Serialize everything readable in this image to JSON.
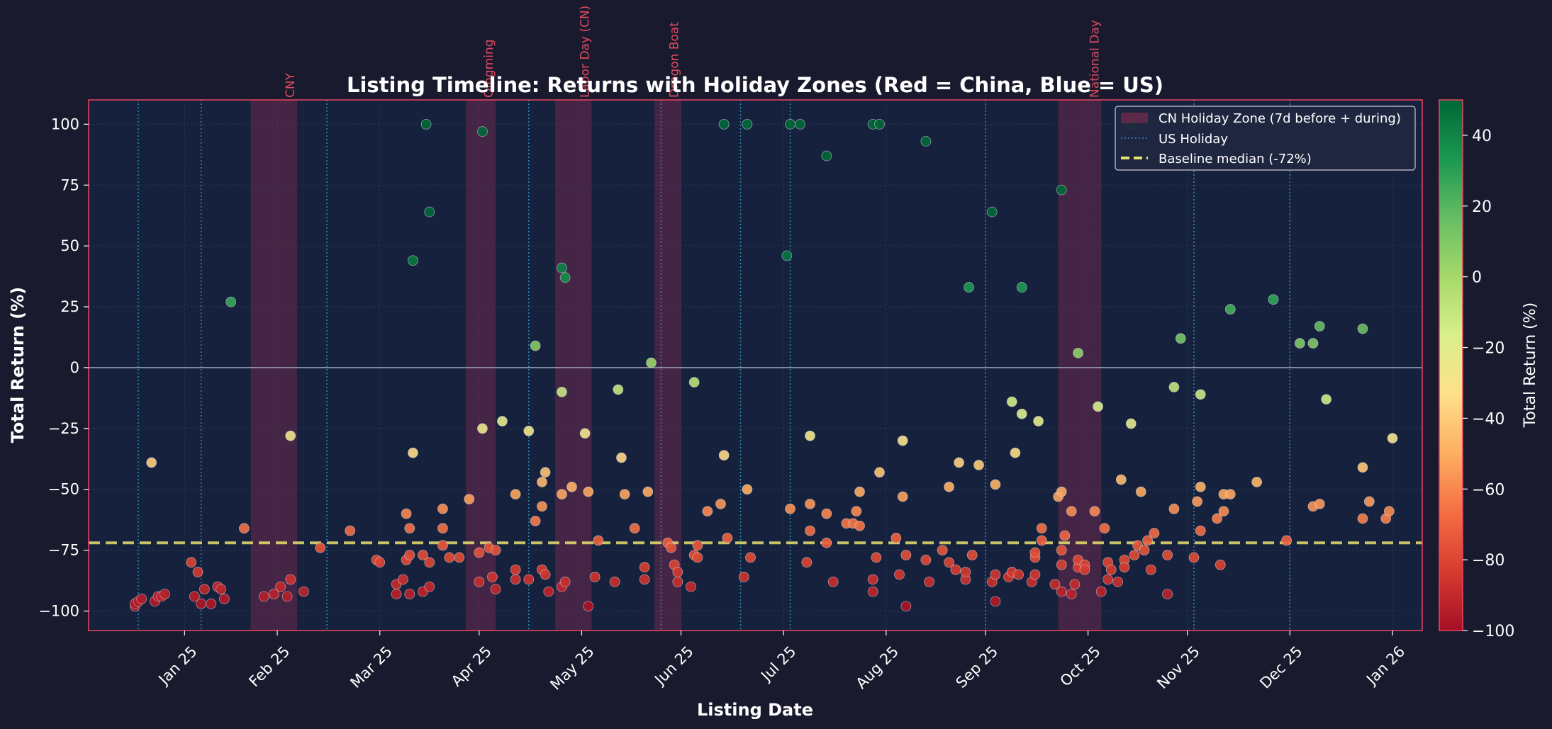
{
  "chart_data": {
    "type": "scatter",
    "title": "Listing Timeline: Returns with Holiday Zones (Red = China, Blue = US)",
    "xlabel": "Listing Date",
    "ylabel": "Total Return (%)",
    "xlim": [
      "2025-01-03",
      "2026-02-10"
    ],
    "ylim": [
      -108,
      110
    ],
    "x_ticks": [
      {
        "date": "2025-02-01",
        "label": "Jan 25"
      },
      {
        "date": "2025-03-01",
        "label": "Feb 25"
      },
      {
        "date": "2025-04-01",
        "label": "Mar 25"
      },
      {
        "date": "2025-05-01",
        "label": "Apr 25"
      },
      {
        "date": "2025-06-01",
        "label": "May 25"
      },
      {
        "date": "2025-07-01",
        "label": "Jun 25"
      },
      {
        "date": "2025-08-01",
        "label": "Jul 25"
      },
      {
        "date": "2025-09-01",
        "label": "Aug 25"
      },
      {
        "date": "2025-10-01",
        "label": "Sep 25"
      },
      {
        "date": "2025-11-01",
        "label": "Oct 25"
      },
      {
        "date": "2025-12-01",
        "label": "Nov 25"
      },
      {
        "date": "2026-01-01",
        "label": "Dec 25"
      },
      {
        "date": "2026-02-01",
        "label": "Jan 26"
      }
    ],
    "y_ticks": [
      100,
      75,
      50,
      25,
      0,
      -25,
      -50,
      -75,
      -100
    ],
    "grid": true,
    "zero_line": 0,
    "baseline_median": -72,
    "cn_holiday_zones": [
      {
        "label": "CNY",
        "start": "2025-02-21",
        "end": "2025-03-07"
      },
      {
        "label": "Qingming",
        "start": "2025-04-27",
        "end": "2025-05-06"
      },
      {
        "label": "Labor Day (CN)",
        "start": "2025-05-24",
        "end": "2025-06-04"
      },
      {
        "label": "Dragon Boat",
        "start": "2025-06-23",
        "end": "2025-07-01"
      },
      {
        "label": "National Day",
        "start": "2025-10-23",
        "end": "2025-11-05"
      }
    ],
    "us_holidays": [
      "2025-01-18",
      "2025-02-06",
      "2025-03-16",
      "2025-05-16",
      "2025-06-25",
      "2025-07-19",
      "2025-08-03",
      "2025-10-01",
      "2025-12-03",
      "2026-01-01"
    ],
    "legend": {
      "position": "top-right",
      "entries": [
        "CN Holiday Zone (7d before + during)",
        "US Holiday",
        "Baseline median (-72%)"
      ]
    },
    "colorbar": {
      "label": "Total Return (%)",
      "min": -100,
      "max": 50,
      "ticks": [
        40,
        20,
        0,
        -20,
        -40,
        -60,
        -80,
        -100
      ],
      "colors": [
        "#a50f26",
        "#d73b2f",
        "#f46d43",
        "#fdae61",
        "#fee08b",
        "#d9ef8b",
        "#a6d96a",
        "#66bd63",
        "#1a9850",
        "#006837"
      ]
    },
    "colors": {
      "background": "#1a1a2e",
      "plot_background": "#16213e",
      "frame": "#e94560",
      "cn_zone": "#6b2a4a",
      "us_line": "#2a8fb8",
      "baseline": "#e8e070"
    },
    "points": [
      [
        "2025-01-17",
        -98
      ],
      [
        "2025-01-17",
        -97
      ],
      [
        "2025-01-18",
        -96
      ],
      [
        "2025-01-19",
        -95
      ],
      [
        "2025-01-22",
        -39
      ],
      [
        "2025-01-23",
        -96
      ],
      [
        "2025-01-24",
        -94
      ],
      [
        "2025-01-25",
        -94
      ],
      [
        "2025-01-26",
        -93
      ],
      [
        "2025-02-03",
        -80
      ],
      [
        "2025-02-04",
        -94
      ],
      [
        "2025-02-05",
        -84
      ],
      [
        "2025-02-06",
        -97
      ],
      [
        "2025-02-07",
        -91
      ],
      [
        "2025-02-09",
        -97
      ],
      [
        "2025-02-11",
        -90
      ],
      [
        "2025-02-12",
        -91
      ],
      [
        "2025-02-13",
        -95
      ],
      [
        "2025-02-15",
        27
      ],
      [
        "2025-02-19",
        -66
      ],
      [
        "2025-02-25",
        -94
      ],
      [
        "2025-02-28",
        -93
      ],
      [
        "2025-03-02",
        -90
      ],
      [
        "2025-03-04",
        -94
      ],
      [
        "2025-03-05",
        -87
      ],
      [
        "2025-03-05",
        -28
      ],
      [
        "2025-03-09",
        -92
      ],
      [
        "2025-03-14",
        -74
      ],
      [
        "2025-03-23",
        -67
      ],
      [
        "2025-03-31",
        -79
      ],
      [
        "2025-04-01",
        -80
      ],
      [
        "2025-04-06",
        -89
      ],
      [
        "2025-04-06",
        -93
      ],
      [
        "2025-04-08",
        -87
      ],
      [
        "2025-04-09",
        -60
      ],
      [
        "2025-04-09",
        -79
      ],
      [
        "2025-04-10",
        -93
      ],
      [
        "2025-04-10",
        -77
      ],
      [
        "2025-04-10",
        -66
      ],
      [
        "2025-04-11",
        44
      ],
      [
        "2025-04-11",
        -35
      ],
      [
        "2025-04-14",
        -92
      ],
      [
        "2025-04-14",
        -77
      ],
      [
        "2025-04-15",
        100
      ],
      [
        "2025-04-16",
        -80
      ],
      [
        "2025-04-16",
        -90
      ],
      [
        "2025-04-16",
        64
      ],
      [
        "2025-04-20",
        -58
      ],
      [
        "2025-04-20",
        -66
      ],
      [
        "2025-04-20",
        -73
      ],
      [
        "2025-04-22",
        -78
      ],
      [
        "2025-04-25",
        -78
      ],
      [
        "2025-04-28",
        -54
      ],
      [
        "2025-05-01",
        -76
      ],
      [
        "2025-05-01",
        -88
      ],
      [
        "2025-05-02",
        97
      ],
      [
        "2025-05-02",
        -25
      ],
      [
        "2025-05-04",
        -74
      ],
      [
        "2025-05-05",
        -86
      ],
      [
        "2025-05-06",
        -75
      ],
      [
        "2025-05-06",
        -91
      ],
      [
        "2025-05-08",
        -22
      ],
      [
        "2025-05-12",
        -52
      ],
      [
        "2025-05-12",
        -87
      ],
      [
        "2025-05-12",
        -83
      ],
      [
        "2025-05-16",
        -87
      ],
      [
        "2025-05-16",
        -26
      ],
      [
        "2025-05-18",
        9
      ],
      [
        "2025-05-18",
        -63
      ],
      [
        "2025-05-20",
        -83
      ],
      [
        "2025-05-20",
        -47
      ],
      [
        "2025-05-20",
        -57
      ],
      [
        "2025-05-21",
        -85
      ],
      [
        "2025-05-21",
        -43
      ],
      [
        "2025-05-22",
        -92
      ],
      [
        "2025-05-26",
        41
      ],
      [
        "2025-05-26",
        -10
      ],
      [
        "2025-05-26",
        -90
      ],
      [
        "2025-05-26",
        -52
      ],
      [
        "2025-05-27",
        37
      ],
      [
        "2025-05-27",
        -88
      ],
      [
        "2025-05-29",
        -49
      ],
      [
        "2025-06-02",
        -27
      ],
      [
        "2025-06-03",
        -51
      ],
      [
        "2025-06-03",
        -98
      ],
      [
        "2025-06-05",
        -86
      ],
      [
        "2025-06-06",
        -71
      ],
      [
        "2025-06-11",
        -88
      ],
      [
        "2025-06-12",
        -9
      ],
      [
        "2025-06-13",
        -37
      ],
      [
        "2025-06-14",
        -52
      ],
      [
        "2025-06-17",
        -66
      ],
      [
        "2025-06-20",
        -82
      ],
      [
        "2025-06-20",
        -87
      ],
      [
        "2025-06-21",
        -51
      ],
      [
        "2025-06-22",
        2
      ],
      [
        "2025-06-27",
        -72
      ],
      [
        "2025-06-28",
        -74
      ],
      [
        "2025-06-29",
        -81
      ],
      [
        "2025-06-30",
        -84
      ],
      [
        "2025-06-30",
        -88
      ],
      [
        "2025-07-04",
        -90
      ],
      [
        "2025-07-05",
        -77
      ],
      [
        "2025-07-05",
        -6
      ],
      [
        "2025-07-06",
        -73
      ],
      [
        "2025-07-06",
        -78
      ],
      [
        "2025-07-09",
        -59
      ],
      [
        "2025-07-13",
        -56
      ],
      [
        "2025-07-14",
        100
      ],
      [
        "2025-07-14",
        -36
      ],
      [
        "2025-07-15",
        -70
      ],
      [
        "2025-07-20",
        -86
      ],
      [
        "2025-07-21",
        100
      ],
      [
        "2025-07-21",
        -50
      ],
      [
        "2025-07-22",
        -78
      ],
      [
        "2025-08-02",
        46
      ],
      [
        "2025-08-03",
        100
      ],
      [
        "2025-08-03",
        -58
      ],
      [
        "2025-08-06",
        100
      ],
      [
        "2025-08-08",
        -80
      ],
      [
        "2025-08-09",
        -28
      ],
      [
        "2025-08-09",
        -56
      ],
      [
        "2025-08-09",
        -67
      ],
      [
        "2025-08-14",
        87
      ],
      [
        "2025-08-14",
        -60
      ],
      [
        "2025-08-14",
        -72
      ],
      [
        "2025-08-16",
        -88
      ],
      [
        "2025-08-20",
        -64
      ],
      [
        "2025-08-22",
        -64
      ],
      [
        "2025-08-23",
        -59
      ],
      [
        "2025-08-24",
        -65
      ],
      [
        "2025-08-24",
        -51
      ],
      [
        "2025-08-28",
        100
      ],
      [
        "2025-08-28",
        -87
      ],
      [
        "2025-08-28",
        -92
      ],
      [
        "2025-08-29",
        -78
      ],
      [
        "2025-08-30",
        -43
      ],
      [
        "2025-08-30",
        100
      ],
      [
        "2025-09-04",
        -70
      ],
      [
        "2025-09-05",
        -85
      ],
      [
        "2025-09-06",
        -53
      ],
      [
        "2025-09-06",
        -30
      ],
      [
        "2025-09-07",
        -77
      ],
      [
        "2025-09-07",
        -98
      ],
      [
        "2025-09-13",
        93
      ],
      [
        "2025-09-13",
        -79
      ],
      [
        "2025-09-14",
        -88
      ],
      [
        "2025-09-18",
        -75
      ],
      [
        "2025-09-20",
        -49
      ],
      [
        "2025-09-20",
        -80
      ],
      [
        "2025-09-22",
        -83
      ],
      [
        "2025-09-23",
        -39
      ],
      [
        "2025-09-25",
        -87
      ],
      [
        "2025-09-25",
        -84
      ],
      [
        "2025-09-26",
        33
      ],
      [
        "2025-09-27",
        -77
      ],
      [
        "2025-09-29",
        -40
      ],
      [
        "2025-10-03",
        -88
      ],
      [
        "2025-10-03",
        64
      ],
      [
        "2025-10-04",
        -48
      ],
      [
        "2025-10-04",
        -85
      ],
      [
        "2025-10-04",
        -96
      ],
      [
        "2025-10-08",
        -86
      ],
      [
        "2025-10-09",
        -14
      ],
      [
        "2025-10-09",
        -84
      ],
      [
        "2025-10-10",
        -35
      ],
      [
        "2025-10-11",
        -85
      ],
      [
        "2025-10-12",
        -19
      ],
      [
        "2025-10-12",
        33
      ],
      [
        "2025-10-15",
        -88
      ],
      [
        "2025-10-16",
        -85
      ],
      [
        "2025-10-16",
        -78
      ],
      [
        "2025-10-16",
        -76
      ],
      [
        "2025-10-17",
        -22
      ],
      [
        "2025-10-18",
        -71
      ],
      [
        "2025-10-18",
        -66
      ],
      [
        "2025-10-22",
        -89
      ],
      [
        "2025-10-23",
        -53
      ],
      [
        "2025-10-24",
        -51
      ],
      [
        "2025-10-24",
        -75
      ],
      [
        "2025-10-24",
        -81
      ],
      [
        "2025-10-24",
        -92
      ],
      [
        "2025-10-24",
        73
      ],
      [
        "2025-10-25",
        -69
      ],
      [
        "2025-10-27",
        -59
      ],
      [
        "2025-10-27",
        -93
      ],
      [
        "2025-10-28",
        -89
      ],
      [
        "2025-10-29",
        -82
      ],
      [
        "2025-10-29",
        -79
      ],
      [
        "2025-10-29",
        6
      ],
      [
        "2025-10-31",
        -81
      ],
      [
        "2025-10-31",
        -83
      ],
      [
        "2025-11-03",
        -59
      ],
      [
        "2025-11-04",
        -16
      ],
      [
        "2025-11-05",
        -92
      ],
      [
        "2025-11-06",
        -66
      ],
      [
        "2025-11-07",
        -80
      ],
      [
        "2025-11-07",
        -87
      ],
      [
        "2025-11-08",
        -83
      ],
      [
        "2025-11-10",
        -88
      ],
      [
        "2025-11-11",
        -46
      ],
      [
        "2025-11-12",
        -79
      ],
      [
        "2025-11-12",
        -82
      ],
      [
        "2025-11-14",
        100
      ],
      [
        "2025-11-14",
        -23
      ],
      [
        "2025-11-15",
        -77
      ],
      [
        "2025-11-16",
        -73
      ],
      [
        "2025-11-17",
        -51
      ],
      [
        "2025-11-18",
        -75
      ],
      [
        "2025-11-19",
        -71
      ],
      [
        "2025-11-20",
        -83
      ],
      [
        "2025-11-21",
        -68
      ],
      [
        "2025-11-25",
        -77
      ],
      [
        "2025-11-25",
        -93
      ],
      [
        "2025-11-27",
        -58
      ],
      [
        "2025-11-27",
        -8
      ],
      [
        "2025-11-29",
        12
      ],
      [
        "2025-12-03",
        -78
      ],
      [
        "2025-12-04",
        -55
      ],
      [
        "2025-12-05",
        -67
      ],
      [
        "2025-12-05",
        -49
      ],
      [
        "2025-12-05",
        -11
      ],
      [
        "2025-12-10",
        -62
      ],
      [
        "2025-12-11",
        -81
      ],
      [
        "2025-12-12",
        -59
      ],
      [
        "2025-12-12",
        -52
      ],
      [
        "2025-12-14",
        24
      ],
      [
        "2025-12-14",
        -52
      ],
      [
        "2025-12-22",
        -47
      ],
      [
        "2025-12-27",
        28
      ],
      [
        "2025-12-31",
        -71
      ],
      [
        "2026-01-04",
        10
      ],
      [
        "2026-01-08",
        10
      ],
      [
        "2026-01-08",
        -57
      ],
      [
        "2026-01-10",
        17
      ],
      [
        "2026-01-10",
        -56
      ],
      [
        "2026-01-12",
        -13
      ],
      [
        "2026-01-23",
        16
      ],
      [
        "2026-01-23",
        -41
      ],
      [
        "2026-01-23",
        -62
      ],
      [
        "2026-01-25",
        -55
      ],
      [
        "2026-01-30",
        -62
      ],
      [
        "2026-01-31",
        -59
      ],
      [
        "2026-02-01",
        -29
      ]
    ]
  }
}
